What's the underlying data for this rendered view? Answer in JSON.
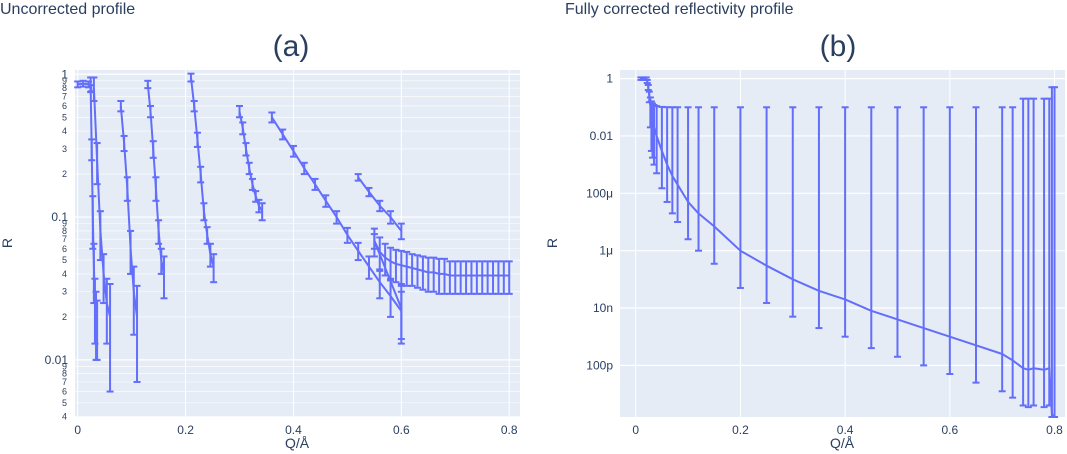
{
  "chart_data": [
    {
      "id": "a",
      "type": "line",
      "title": "Uncorrected profile",
      "tag": "(a)",
      "xlabel": "Q/Å",
      "ylabel": "R",
      "xlim": [
        -0.005,
        0.82
      ],
      "ylog": true,
      "ylim_log10": [
        -2.4,
        0.03
      ],
      "x_ticks": [
        0,
        0.2,
        0.4,
        0.6,
        0.8
      ],
      "x_tick_labels": [
        "0",
        "0.2",
        "0.4",
        "0.6",
        "0.8"
      ],
      "y_major_ticks": [
        1,
        0.1,
        0.01
      ],
      "y_major_labels": [
        "1",
        "0.1",
        "0.01"
      ],
      "y_minor_ticks": [
        0.9,
        0.8,
        0.7,
        0.6,
        0.5,
        0.4,
        0.3,
        0.2,
        0.09,
        0.08,
        0.07,
        0.06,
        0.05,
        0.04,
        0.03,
        0.02,
        0.009,
        0.008,
        0.007,
        0.006,
        0.005,
        0.004
      ],
      "y_minor_labels": [
        "9",
        "8",
        "7",
        "6",
        "5",
        "4",
        "3",
        "2",
        "9",
        "8",
        "7",
        "6",
        "5",
        "4",
        "3",
        "2",
        "9",
        "8",
        "7",
        "6",
        "5",
        "4"
      ],
      "grid": true,
      "line_color": "#636efa",
      "series": [
        {
          "x": [
            0.0,
            0.01,
            0.02,
            0.025
          ],
          "y": [
            0.85,
            0.86,
            0.85,
            0.8
          ],
          "err": [
            0.04,
            0.04,
            0.04,
            0.04
          ]
        },
        {
          "x": [
            0.024,
            0.026,
            0.028,
            0.03,
            0.032,
            0.034,
            0.036
          ],
          "y": [
            0.85,
            0.3,
            0.1,
            0.045,
            0.025,
            0.02,
            0.018
          ],
          "err": [
            0.1,
            0.05,
            0.04,
            0.02,
            0.012,
            0.01,
            0.008
          ]
        },
        {
          "x": [
            0.03,
            0.036,
            0.042,
            0.048,
            0.054,
            0.06
          ],
          "y": [
            0.8,
            0.25,
            0.08,
            0.04,
            0.025,
            0.02
          ],
          "err": [
            0.15,
            0.08,
            0.03,
            0.015,
            0.012,
            0.014
          ]
        },
        {
          "x": [
            0.08,
            0.086,
            0.092,
            0.098,
            0.104,
            0.11
          ],
          "y": [
            0.6,
            0.33,
            0.16,
            0.06,
            0.03,
            0.02
          ],
          "err": [
            0.05,
            0.04,
            0.03,
            0.02,
            0.015,
            0.013
          ]
        },
        {
          "x": [
            0.13,
            0.135,
            0.14,
            0.145,
            0.15,
            0.155,
            0.16
          ],
          "y": [
            0.85,
            0.55,
            0.3,
            0.16,
            0.08,
            0.05,
            0.04
          ],
          "err": [
            0.05,
            0.05,
            0.04,
            0.03,
            0.015,
            0.01,
            0.013
          ]
        },
        {
          "x": [
            0.21,
            0.216,
            0.222,
            0.228,
            0.234,
            0.24,
            0.246,
            0.252
          ],
          "y": [
            0.95,
            0.6,
            0.35,
            0.2,
            0.11,
            0.075,
            0.055,
            0.045
          ],
          "err": [
            0.06,
            0.05,
            0.04,
            0.025,
            0.015,
            0.01,
            0.01,
            0.01
          ]
        },
        {
          "x": [
            0.3,
            0.306,
            0.312,
            0.318,
            0.324,
            0.33,
            0.336,
            0.342
          ],
          "y": [
            0.55,
            0.42,
            0.3,
            0.22,
            0.17,
            0.14,
            0.12,
            0.11
          ],
          "err": [
            0.05,
            0.04,
            0.03,
            0.02,
            0.015,
            0.012,
            0.012,
            0.015
          ]
        },
        {
          "x": [
            0.52,
            0.54,
            0.56,
            0.58,
            0.6
          ],
          "y": [
            0.19,
            0.15,
            0.12,
            0.1,
            0.08
          ],
          "err": [
            0.01,
            0.01,
            0.01,
            0.01,
            0.01
          ]
        },
        {
          "x": [
            0.36,
            0.38,
            0.4,
            0.42,
            0.44,
            0.46,
            0.48,
            0.5,
            0.52,
            0.54,
            0.56,
            0.58,
            0.6
          ],
          "y": [
            0.5,
            0.38,
            0.29,
            0.22,
            0.17,
            0.13,
            0.1,
            0.075,
            0.058,
            0.045,
            0.035,
            0.028,
            0.022
          ],
          "err": [
            0.04,
            0.03,
            0.025,
            0.02,
            0.015,
            0.012,
            0.01,
            0.009,
            0.008,
            0.008,
            0.008,
            0.008,
            0.008
          ]
        },
        {
          "x": [
            0.55,
            0.6
          ],
          "y": [
            0.068,
            0.023
          ],
          "err": [
            0.008,
            0.01
          ]
        },
        {
          "x": [
            0.55,
            0.56,
            0.57,
            0.58,
            0.59,
            0.6,
            0.61,
            0.62,
            0.63,
            0.64,
            0.65,
            0.66,
            0.67,
            0.68,
            0.69,
            0.7,
            0.71,
            0.72,
            0.73,
            0.74,
            0.75,
            0.76,
            0.77,
            0.78,
            0.79,
            0.8
          ],
          "y": [
            0.068,
            0.057,
            0.052,
            0.049,
            0.047,
            0.046,
            0.045,
            0.044,
            0.043,
            0.042,
            0.041,
            0.041,
            0.04,
            0.04,
            0.039,
            0.039,
            0.039,
            0.039,
            0.039,
            0.039,
            0.039,
            0.039,
            0.039,
            0.039,
            0.039,
            0.039
          ],
          "err": [
            0.015,
            0.015,
            0.013,
            0.012,
            0.012,
            0.012,
            0.012,
            0.011,
            0.011,
            0.011,
            0.011,
            0.011,
            0.011,
            0.011,
            0.01,
            0.01,
            0.01,
            0.01,
            0.01,
            0.01,
            0.01,
            0.01,
            0.01,
            0.01,
            0.01,
            0.01
          ]
        }
      ]
    },
    {
      "id": "b",
      "type": "line",
      "title": "Fully corrected reflectivity profile",
      "tag": "(b)",
      "xlabel": "Q/Å",
      "ylabel": "R",
      "xlim": [
        -0.03,
        0.82
      ],
      "ylog": true,
      "ylim_log10": [
        -11.8,
        0.3
      ],
      "x_ticks": [
        0,
        0.2,
        0.4,
        0.6,
        0.8
      ],
      "x_tick_labels": [
        "0",
        "0.2",
        "0.4",
        "0.6",
        "0.8"
      ],
      "y_major_ticks": [
        1,
        0.01,
        0.0001,
        1e-06,
        1e-08,
        1e-10
      ],
      "y_major_labels": [
        "1",
        "0.01",
        "100μ",
        "1μ",
        "10n",
        "100p"
      ],
      "grid": true,
      "line_color": "#636efa",
      "series": [
        {
          "x": [
            0.01,
            0.015,
            0.02,
            0.022,
            0.024,
            0.026,
            0.028,
            0.03,
            0.032,
            0.035,
            0.04,
            0.05,
            0.06,
            0.07,
            0.08,
            0.1,
            0.12,
            0.15,
            0.2,
            0.25,
            0.3,
            0.35,
            0.4,
            0.45,
            0.5,
            0.55,
            0.6,
            0.65,
            0.7,
            0.72,
            0.74,
            0.75,
            0.76,
            0.78,
            0.79,
            0.795,
            0.8
          ],
          "y": [
            1,
            1,
            1,
            0.8,
            0.5,
            0.25,
            0.12,
            0.06,
            0.035,
            0.02,
            0.01,
            0.003,
            0.001,
            0.0004,
            0.0002,
            5e-05,
            2e-05,
            7e-06,
            1e-06,
            3e-07,
            1e-07,
            4e-08,
            2e-08,
            8e-09,
            4e-09,
            2e-09,
            1e-09,
            5e-10,
            2.5e-10,
            1.5e-10,
            8e-11,
            7e-11,
            8e-11,
            7e-11,
            8e-11,
            2e-12,
            1e-13
          ],
          "err": [
            0.1,
            0.1,
            0.1,
            0.1,
            0.1,
            0.1,
            0.1,
            0.1,
            0.1,
            0.1,
            0.1,
            0.1,
            0.1,
            0.1,
            0.1,
            0.1,
            0.1,
            0.1,
            0.1,
            0.1,
            0.1,
            0.1,
            0.1,
            0.1,
            0.1,
            0.1,
            0.1,
            0.1,
            0.1,
            0.1,
            0.2,
            0.2,
            0.2,
            0.2,
            0.2,
            0.5,
            0.5
          ]
        }
      ]
    }
  ]
}
